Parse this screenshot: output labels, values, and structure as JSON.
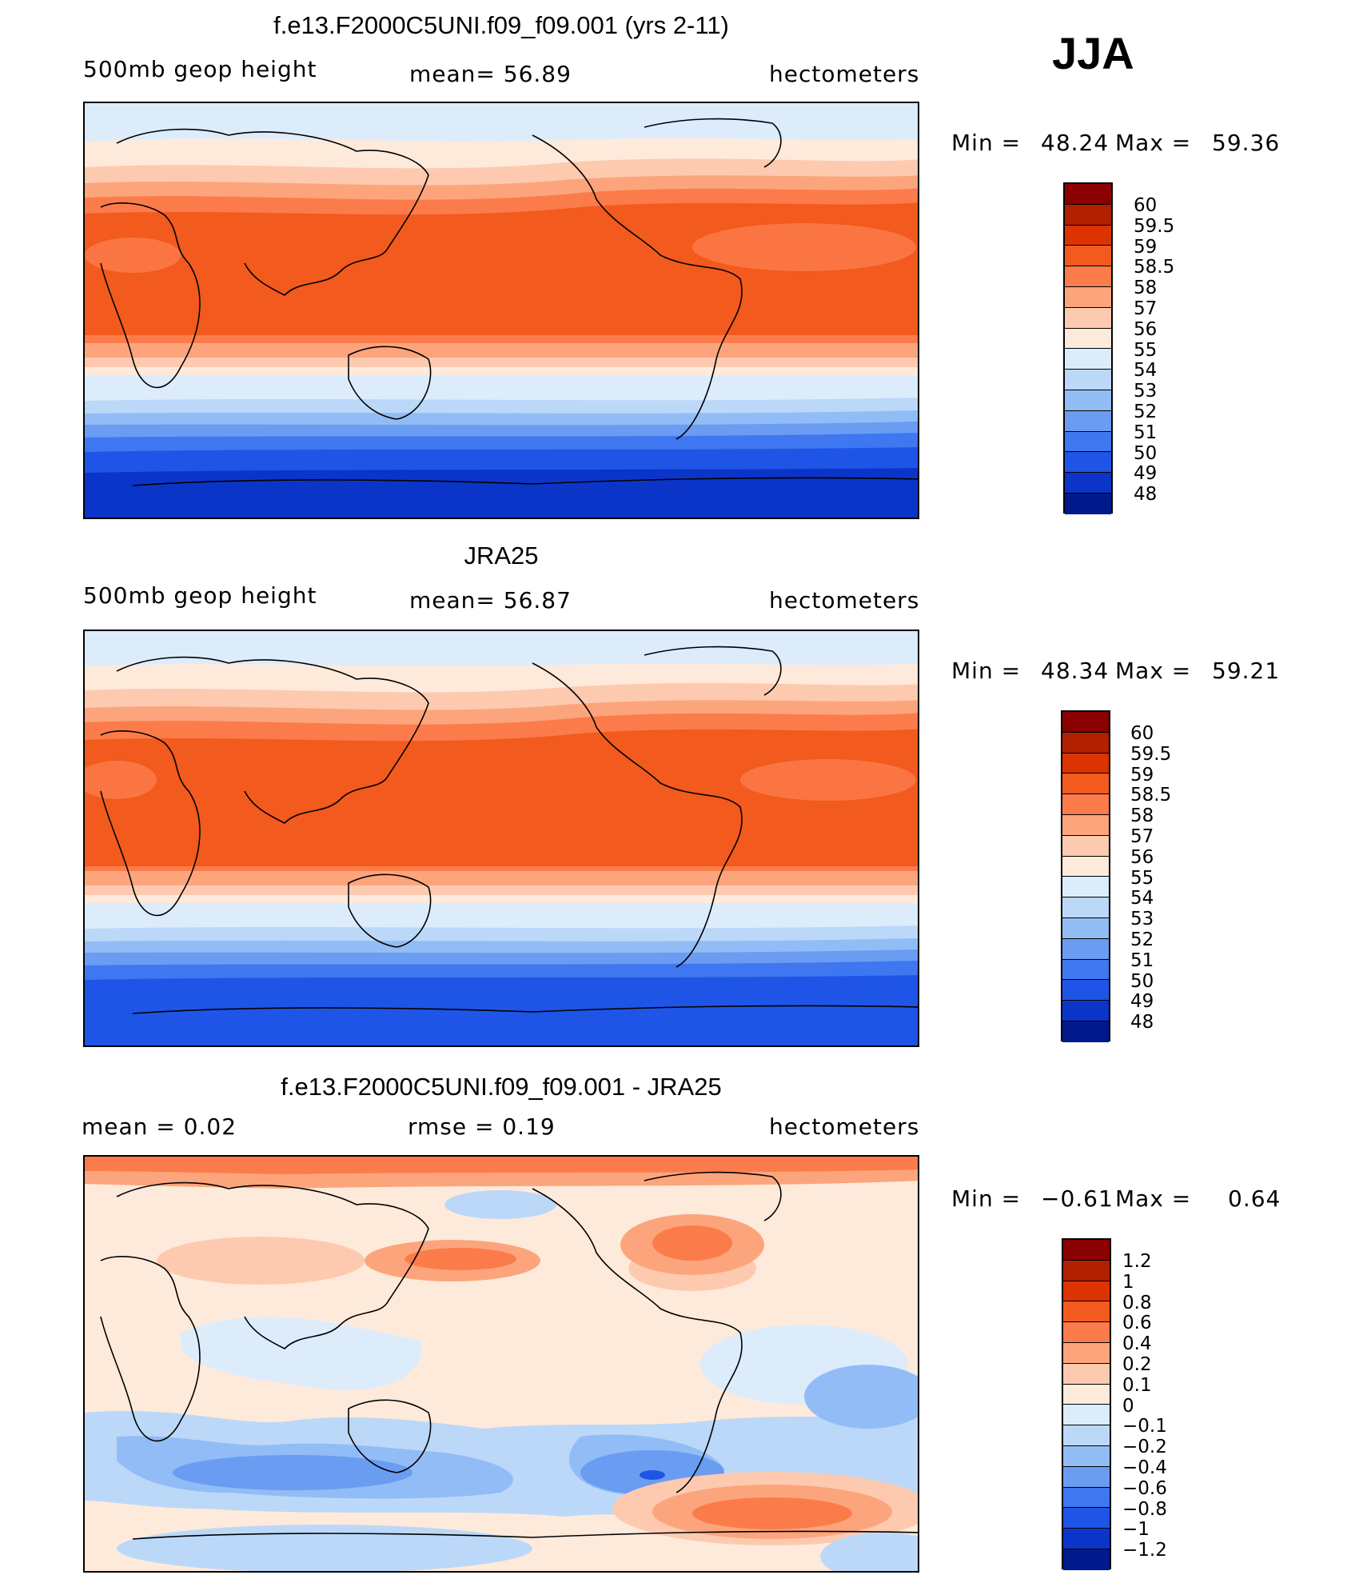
{
  "season": "JJA",
  "panels": [
    {
      "title": "f.e13.F2000C5UNI.f09_f09.001 (yrs 2-11)",
      "left_label": "500mb  geop  height",
      "center_label": "mean=   56.89",
      "right_label": "hectometers",
      "min_label": "Min  =",
      "min_value": "48.24",
      "max_label": "Max  =",
      "max_value": "59.36",
      "colorbar_labels": [
        "60",
        "59.5",
        "59",
        "58.5",
        "58",
        "57",
        "56",
        "55",
        "54",
        "53",
        "52",
        "51",
        "50",
        "49",
        "48"
      ]
    },
    {
      "title": "JRA25",
      "left_label": "500mb  geop  height",
      "center_label": "mean=   56.87",
      "right_label": "hectometers",
      "min_label": "Min  =",
      "min_value": "48.34",
      "max_label": "Max  =",
      "max_value": "59.21",
      "colorbar_labels": [
        "60",
        "59.5",
        "59",
        "58.5",
        "58",
        "57",
        "56",
        "55",
        "54",
        "53",
        "52",
        "51",
        "50",
        "49",
        "48"
      ]
    },
    {
      "title": "f.e13.F2000C5UNI.f09_f09.001 - JRA25",
      "left_label": "mean  =     0.02",
      "center_label": "rmse  =     0.19",
      "right_label": "hectometers",
      "min_label": "Min  =",
      "min_value": "−0.61",
      "max_label": "Max  =",
      "max_value": "0.64",
      "colorbar_labels": [
        "1.2",
        "1",
        "0.8",
        "0.6",
        "0.4",
        "0.2",
        "0.1",
        "0",
        "−0.1",
        "−0.2",
        "−0.4",
        "−0.6",
        "−0.8",
        "−1",
        "−1.2"
      ]
    }
  ],
  "colorbar_colors": [
    "#8b0000",
    "#b22000",
    "#dd3300",
    "#f25a1e",
    "#fb7c4a",
    "#fca57c",
    "#fdcab0",
    "#feeadb",
    "#dcecfb",
    "#bcd8f8",
    "#92bcf5",
    "#6a9cf2",
    "#3e77f0",
    "#1f55e6",
    "#0b35c8",
    "#001a8c"
  ],
  "map_colors": {
    "pos1": "#feeadb",
    "pos2": "#fdcab0",
    "pos3": "#fca57c",
    "pos4": "#fb7c4a",
    "pos5": "#f25a1e",
    "neg1": "#dcecfb",
    "neg2": "#bcd8f8",
    "neg3": "#92bcf5",
    "neg4": "#6a9cf2",
    "neg5": "#3e77f0",
    "neg6": "#1f55e6",
    "neg7": "#0b35c8"
  }
}
